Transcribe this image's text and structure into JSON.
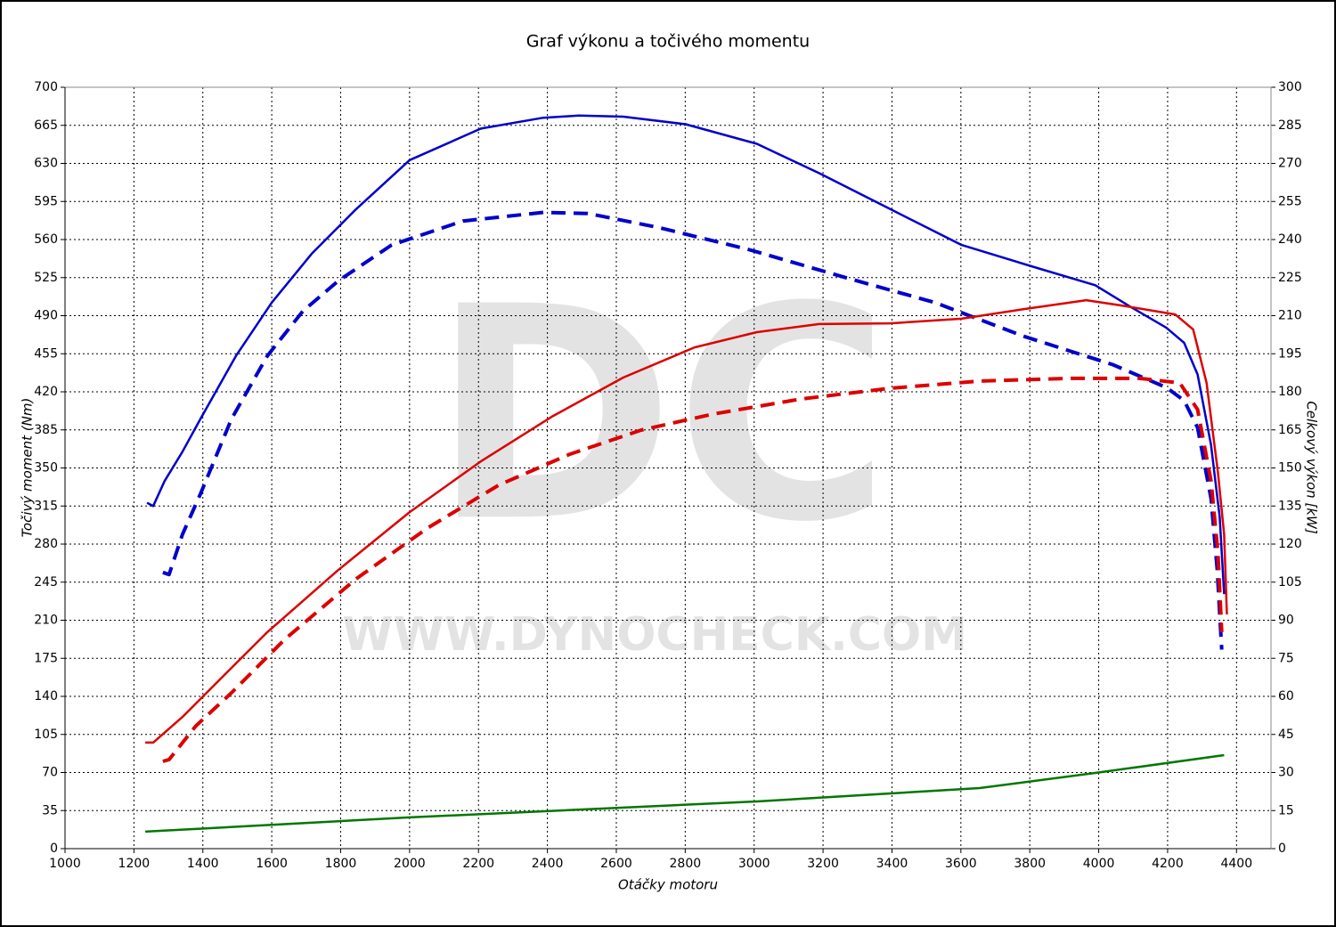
{
  "chart_data": {
    "type": "line",
    "title": "Graf výkonu a točivého momentu",
    "x_label": "Otáčky motoru",
    "y_label": "Točivý moment (Nm)",
    "y2_label": "Celkový výkon [kW]",
    "watermark": "DC",
    "watermark_url": "WWW.DYNOCHECK.COM",
    "grid": true,
    "xlim": [
      1000,
      4500
    ],
    "xticks": [
      1000,
      1200,
      1400,
      1600,
      1800,
      2000,
      2200,
      2400,
      2600,
      2800,
      3000,
      3200,
      3400,
      3600,
      3800,
      4000,
      4200,
      4400
    ],
    "ylim": [
      0,
      700
    ],
    "yticks": [
      0,
      35,
      70,
      105,
      140,
      175,
      210,
      245,
      280,
      315,
      350,
      385,
      420,
      455,
      490,
      525,
      560,
      595,
      630,
      665,
      700
    ],
    "y2lim": [
      0,
      300
    ],
    "y2ticks": [
      0,
      15,
      30,
      45,
      60,
      75,
      90,
      105,
      120,
      135,
      150,
      165,
      180,
      195,
      210,
      225,
      240,
      255,
      270,
      285,
      300
    ],
    "series": [
      {
        "color": "#0000cc",
        "line_style": "solid",
        "axis": "y",
        "x": [
          1238,
          1256,
          1289,
          1341,
          1393,
          1496,
          1600,
          1716,
          1845,
          2000,
          2207,
          2388,
          2491,
          2620,
          2801,
          3008,
          3189,
          3395,
          3602,
          3809,
          3990,
          4093,
          4196,
          4248,
          4287,
          4326,
          4351,
          4364
        ],
        "values": [
          318,
          315,
          338,
          365,
          395,
          453,
          502,
          547,
          588,
          633,
          662,
          672,
          674,
          673,
          666,
          648,
          621,
          588,
          555,
          535,
          518,
          498,
          479,
          465,
          436,
          371,
          305,
          234
        ]
      },
      {
        "color": "#0000cc",
        "line_style": "dashed",
        "axis": "y",
        "x": [
          1284,
          1302,
          1341,
          1393,
          1483,
          1587,
          1690,
          1793,
          1948,
          2155,
          2388,
          2517,
          2724,
          2982,
          3266,
          3525,
          3783,
          4041,
          4196,
          4248,
          4287,
          4326,
          4344,
          4357
        ],
        "values": [
          254,
          252,
          289,
          326,
          395,
          453,
          494,
          522,
          555,
          577,
          585,
          584,
          571,
          551,
          525,
          502,
          471,
          445,
          424,
          412,
          387,
          322,
          256,
          183
        ]
      },
      {
        "color": "#dd0000",
        "line_style": "solid",
        "axis": "y2",
        "x": [
          1233,
          1256,
          1341,
          1457,
          1587,
          1793,
          2000,
          2207,
          2413,
          2620,
          2827,
          3008,
          3189,
          3395,
          3602,
          3783,
          3964,
          4067,
          4222,
          4274,
          4313,
          4346,
          4364,
          4372
        ],
        "values": [
          41.8,
          41.8,
          51.9,
          67.7,
          85.3,
          109.8,
          132.6,
          152.6,
          170.2,
          185.6,
          197.5,
          203.5,
          206.7,
          207,
          208.8,
          212.6,
          216.1,
          214,
          210.5,
          204.6,
          183.5,
          148.4,
          123.9,
          92.3
        ]
      },
      {
        "color": "#dd0000",
        "line_style": "dashed",
        "axis": "y2",
        "x": [
          1284,
          1302,
          1380,
          1483,
          1638,
          1845,
          2052,
          2258,
          2465,
          2672,
          2879,
          3137,
          3395,
          3654,
          3912,
          4119,
          4235,
          4287,
          4326,
          4346,
          4357
        ],
        "values": [
          34.4,
          35.1,
          48.4,
          61.4,
          82.5,
          106.3,
          126.3,
          143.2,
          155.4,
          164.9,
          171.2,
          177.2,
          181.4,
          184.2,
          185.3,
          185.3,
          183.5,
          173,
          144.9,
          116.8,
          85.3
        ]
      },
      {
        "color": "#007700",
        "line_style": "solid",
        "axis": "y",
        "x": [
          1233,
          2000,
          3008,
          3654,
          3990,
          4364
        ],
        "values": [
          15.6,
          28.7,
          43.4,
          55.7,
          69.6,
          86
        ]
      }
    ]
  }
}
